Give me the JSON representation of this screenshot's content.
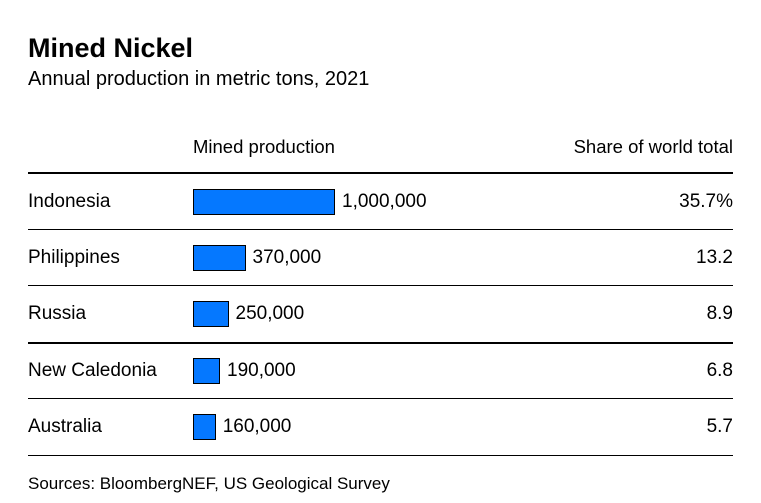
{
  "title": "Mined Nickel",
  "subtitle": "Annual production in metric tons, 2021",
  "source": "Sources: BloombergNEF, US Geological Survey",
  "columns": {
    "production": "Mined production",
    "share": "Share of world total"
  },
  "chart_data": {
    "type": "bar",
    "title": "Mined Nickel",
    "subtitle": "Annual production in metric tons, 2021",
    "categories": [
      "Indonesia",
      "Philippines",
      "Russia",
      "New Caledonia",
      "Australia"
    ],
    "series": [
      {
        "name": "Mined production",
        "values": [
          1000000,
          370000,
          250000,
          190000,
          160000
        ]
      },
      {
        "name": "Share of world total",
        "values": [
          35.7,
          13.2,
          8.9,
          6.8,
          5.7
        ]
      }
    ],
    "value_labels": [
      "1,000,000",
      "370,000",
      "250,000",
      "190,000",
      "160,000"
    ],
    "share_labels": [
      "35.7%",
      "13.2",
      "8.9",
      "6.8",
      "5.7"
    ],
    "bar_color": "#0578ff",
    "max_value": 1000000,
    "orientation": "horizontal",
    "legend": "none",
    "grid": "off"
  }
}
